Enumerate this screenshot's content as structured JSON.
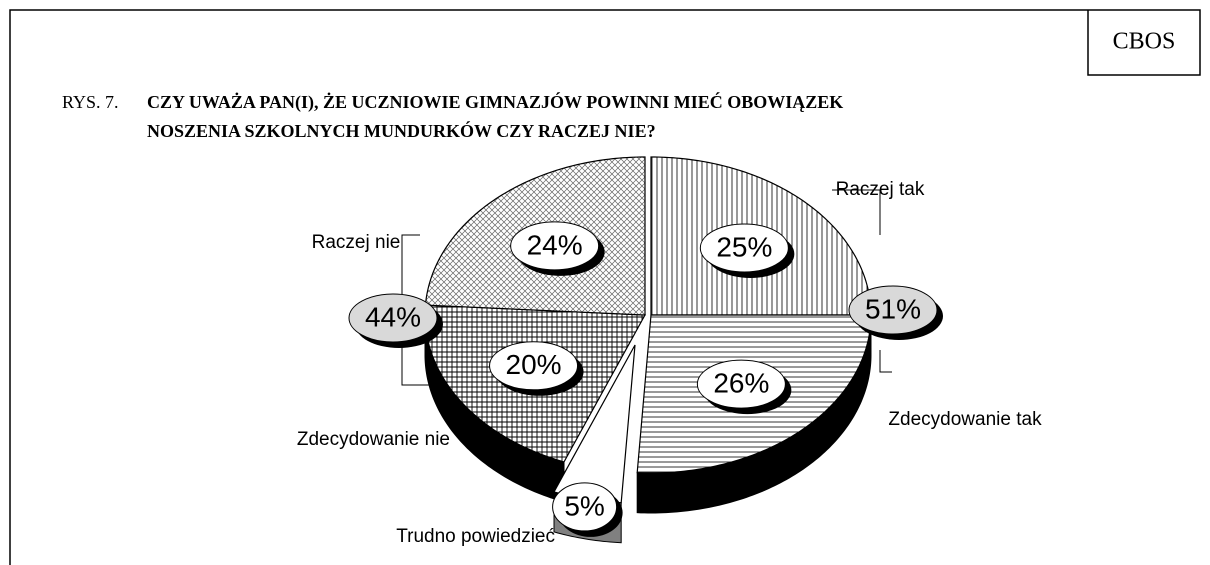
{
  "source": "CBOS",
  "chart_data": {
    "type": "pie",
    "figure_label": "RYS. 7.",
    "title": [
      "CZY UWAŻA PAN(I), ŻE UCZNIOWIE GIMNAZJÓW POWINNI MIEĆ OBOWIĄZEK",
      "NOSZENIA SZKOLNYCH MUNDURKÓW CZY RACZEJ NIE?"
    ],
    "categories": [
      "Raczej tak",
      "Zdecydowanie tak",
      "Trudno powiedzieć",
      "Zdecydowanie nie",
      "Raczej nie"
    ],
    "values": [
      25,
      26,
      5,
      20,
      24
    ],
    "value_labels": [
      "25%",
      "26%",
      "5%",
      "20%",
      "24%"
    ],
    "patterns": [
      "vertical",
      "horizontal",
      "none",
      "grid",
      "crosshatch"
    ],
    "side_colors": [
      "#000000",
      "#000000",
      "#808080",
      "#000000",
      "#000000"
    ],
    "group_totals": [
      51,
      44
    ],
    "group_labels": [
      "51%",
      "44%"
    ]
  }
}
